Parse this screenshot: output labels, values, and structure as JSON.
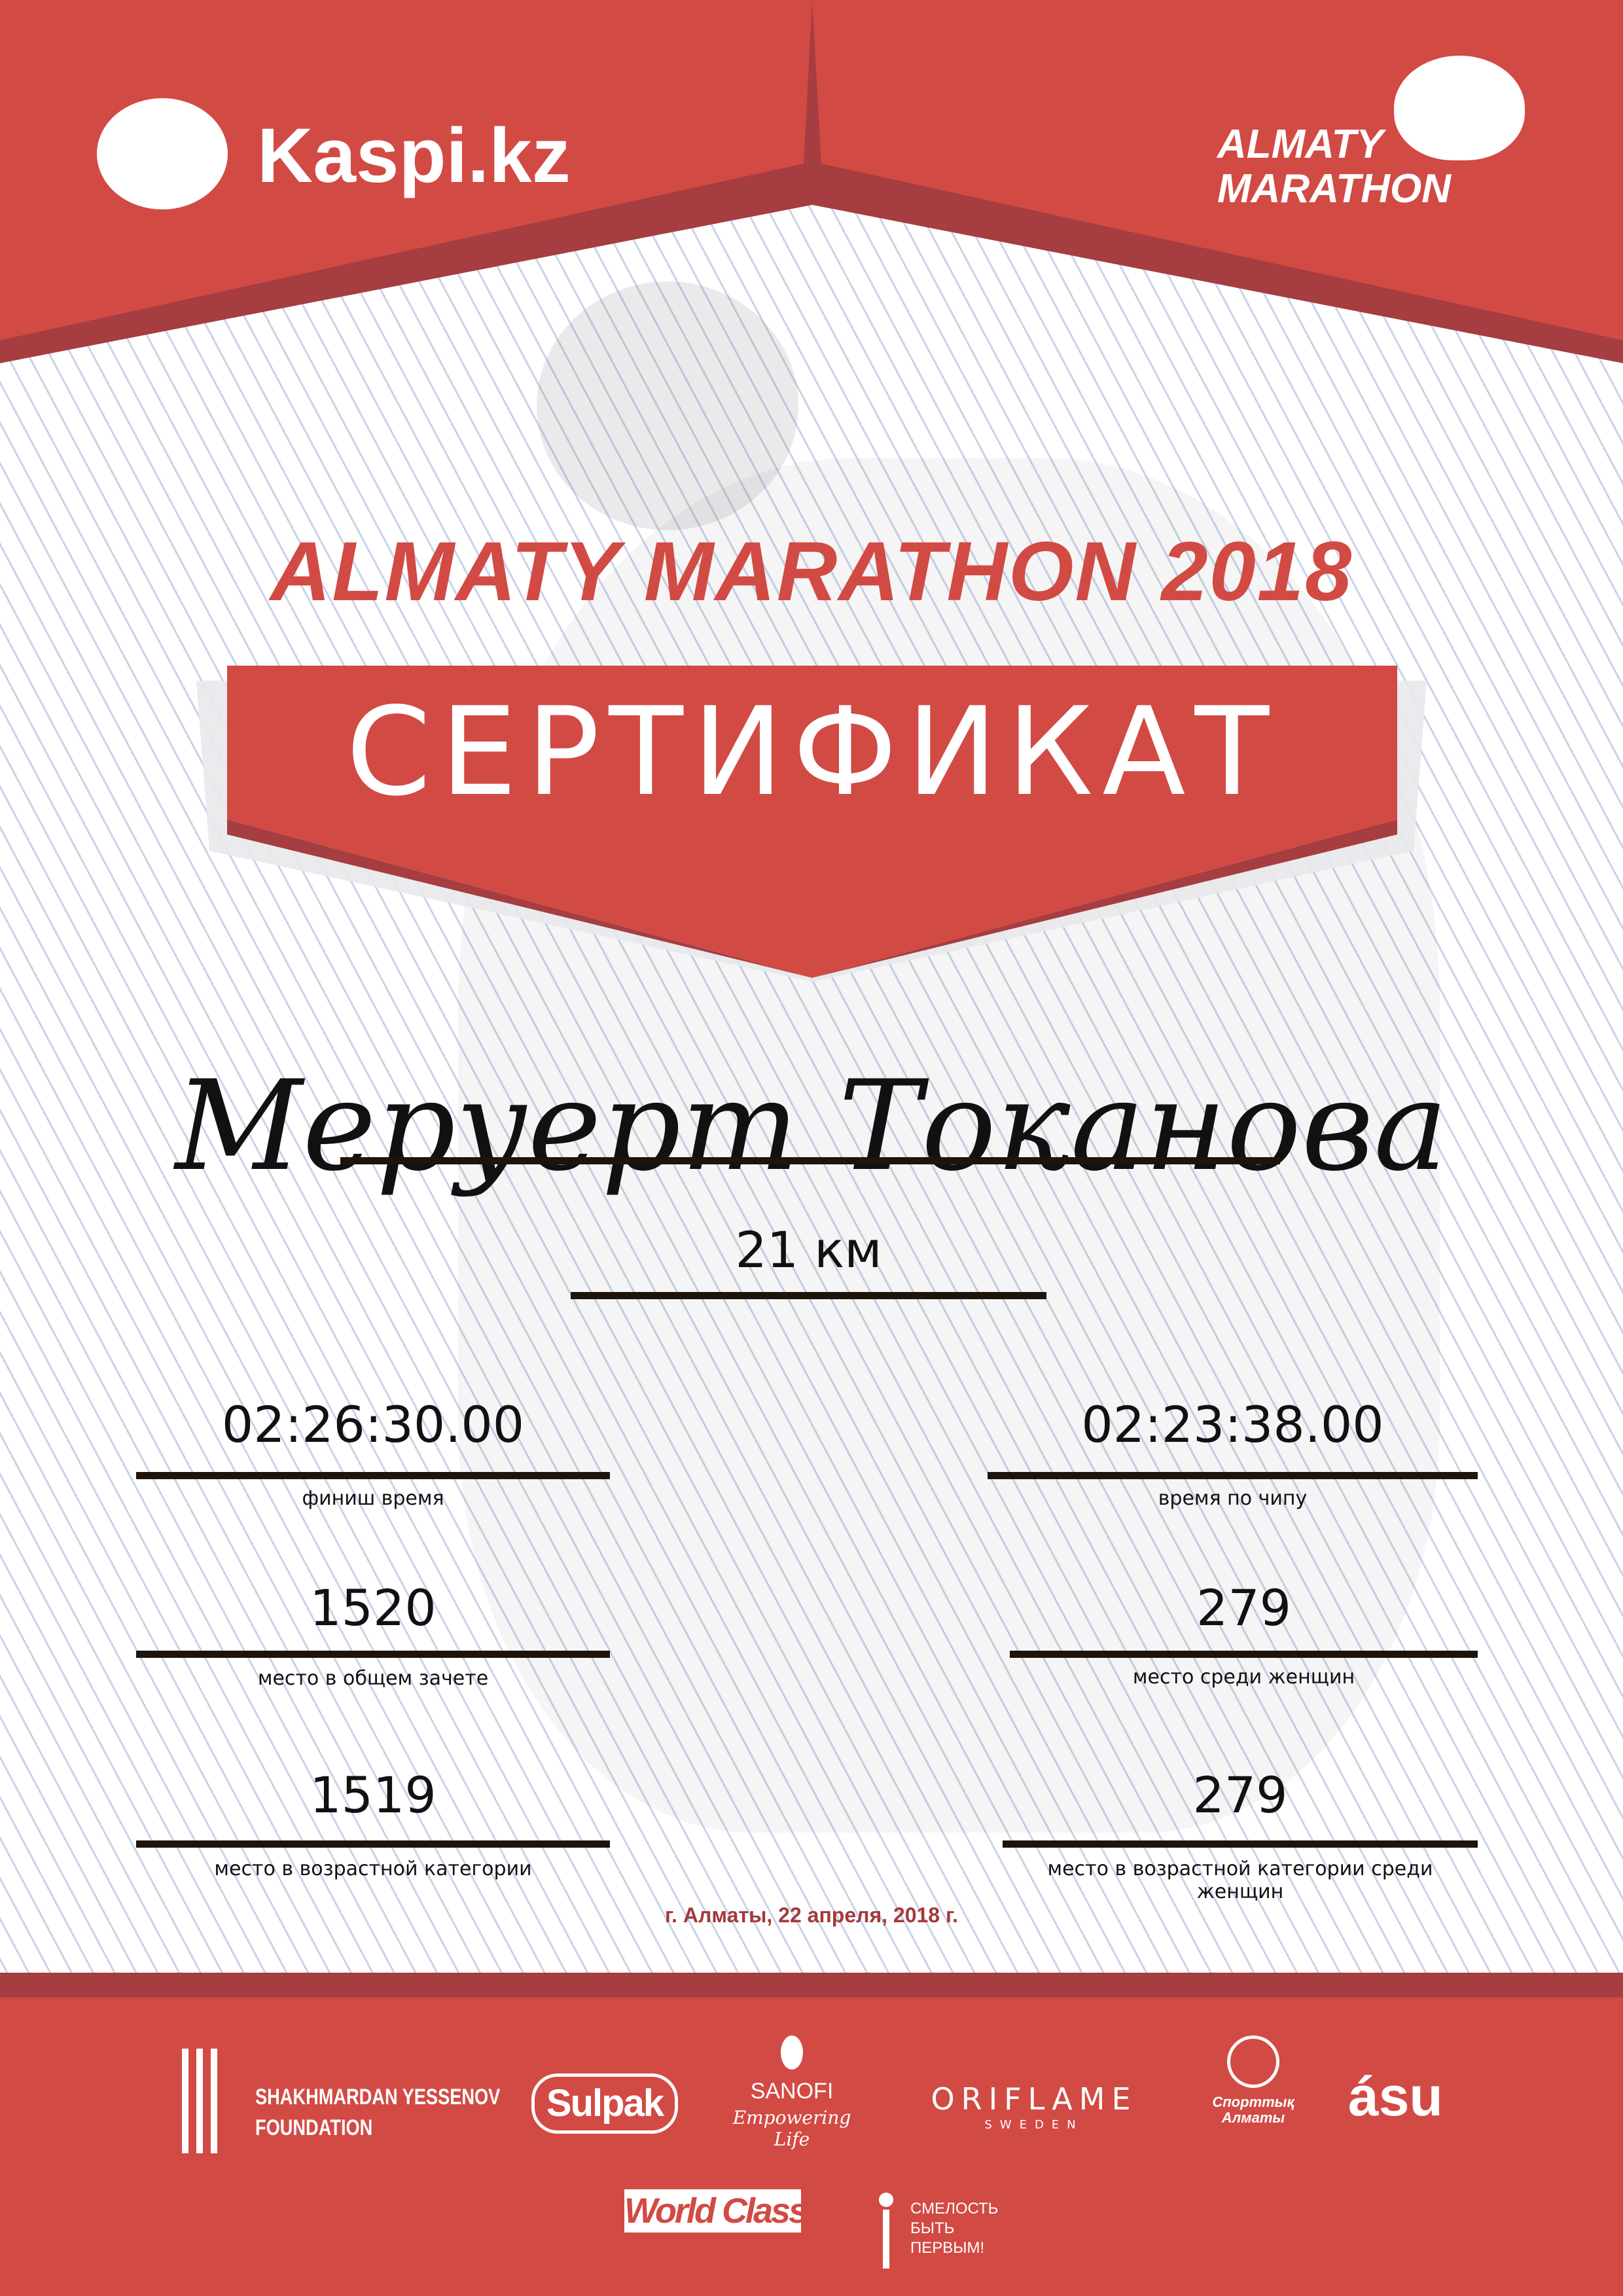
{
  "header": {
    "sponsor_logo": "Kaspi.kz",
    "event_logo_line1": "ALMATY",
    "event_logo_line2": "MARATHON"
  },
  "title": "ALMATY MARATHON 2018",
  "certificate_label": "СЕРТИФИКАТ",
  "participant_name": "Меруерт Токанова",
  "distance": "21 км",
  "results": [
    {
      "value": "02:26:30.00",
      "label": "финиш время"
    },
    {
      "value": "02:23:38.00",
      "label": "время по чипу"
    },
    {
      "value": "1520",
      "label": "место в общем зачете"
    },
    {
      "value": "279",
      "label": "место среди женщин"
    },
    {
      "value": "1519",
      "label": "место в возрастной категории"
    },
    {
      "value": "279",
      "label": "место в возрастной категории среди женщин"
    }
  ],
  "date_place": "г. Алматы, 22 апреля, 2018 г.",
  "partners": {
    "yessenov": [
      "SHAKHMARDAN YESSENOV",
      "FOUNDATION"
    ],
    "sulpak": "Sulpak",
    "sanofi": [
      "SANOFI",
      "Empowering Life"
    ],
    "oriflame": [
      "ORIFLAME",
      "SWEDEN"
    ],
    "sport_almaty": "Спорттық Алматы",
    "asu": "ásu",
    "worldclass": "World Class",
    "fund": [
      "СМЕЛОСТЬ",
      "БЫТЬ",
      "ПЕРВЫМ!"
    ]
  },
  "colors": {
    "brand_red": "#d24a44",
    "dark_red": "#a63d40",
    "line_blue": "#c9d3ea"
  }
}
